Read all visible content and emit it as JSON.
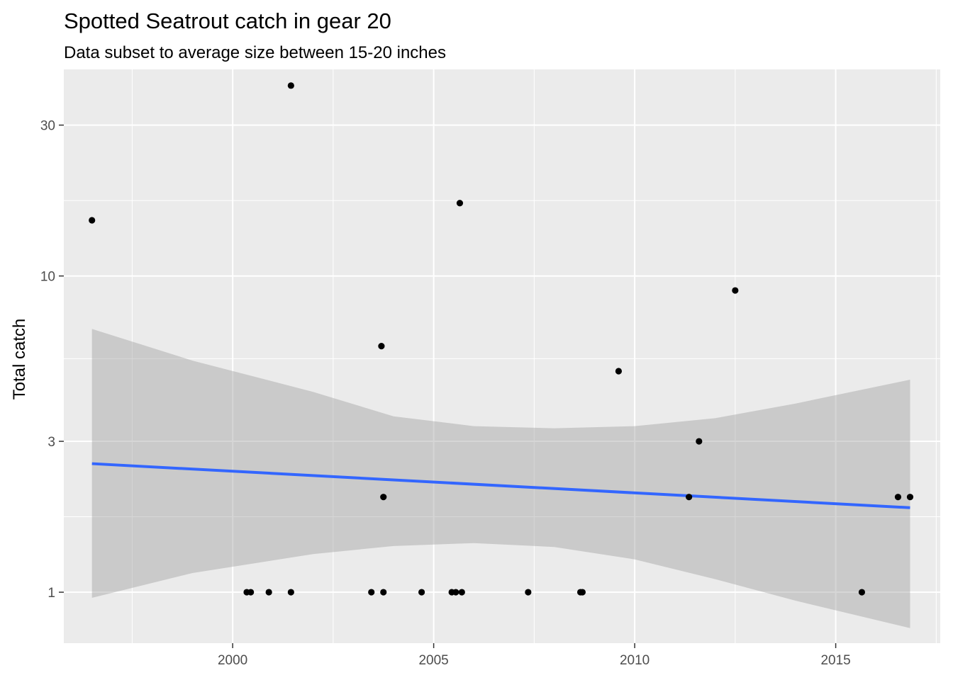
{
  "chart_data": {
    "type": "scatter",
    "title": "Spotted Seatrout catch in gear 20",
    "subtitle": "Data subset to average size between 15-20 inches",
    "xlabel": "",
    "ylabel": "Total catch",
    "y_scale": "log10",
    "xlim": [
      1995.8,
      2017.6
    ],
    "ylim": [
      0.69,
      45
    ],
    "x_ticks": [
      2000,
      2005,
      2010,
      2015
    ],
    "y_ticks": [
      1,
      3,
      10,
      30
    ],
    "grid": true,
    "point_color": "#000000",
    "trend_color": "#3366FF",
    "ribbon_color": "#999999",
    "panel_background": "#EBEBEB",
    "points": [
      {
        "x": 1996.5,
        "y": 15
      },
      {
        "x": 2000.35,
        "y": 1
      },
      {
        "x": 2000.45,
        "y": 1
      },
      {
        "x": 2000.9,
        "y": 1
      },
      {
        "x": 2001.45,
        "y": 1
      },
      {
        "x": 2001.45,
        "y": 40
      },
      {
        "x": 2003.45,
        "y": 1
      },
      {
        "x": 2003.75,
        "y": 1
      },
      {
        "x": 2003.7,
        "y": 6
      },
      {
        "x": 2003.75,
        "y": 2
      },
      {
        "x": 2004.7,
        "y": 1
      },
      {
        "x": 2005.45,
        "y": 1
      },
      {
        "x": 2005.55,
        "y": 1
      },
      {
        "x": 2005.7,
        "y": 1
      },
      {
        "x": 2005.65,
        "y": 17
      },
      {
        "x": 2007.35,
        "y": 1
      },
      {
        "x": 2008.65,
        "y": 1
      },
      {
        "x": 2008.7,
        "y": 1
      },
      {
        "x": 2009.6,
        "y": 5
      },
      {
        "x": 2011.35,
        "y": 2
      },
      {
        "x": 2011.6,
        "y": 3
      },
      {
        "x": 2012.5,
        "y": 9
      },
      {
        "x": 2015.65,
        "y": 1
      },
      {
        "x": 2016.55,
        "y": 2
      },
      {
        "x": 2016.85,
        "y": 2
      }
    ],
    "trend": {
      "x": [
        1996.5,
        2016.85
      ],
      "y": [
        2.55,
        1.85
      ]
    },
    "confidence_band": {
      "x": [
        1996.5,
        1999,
        2002,
        2004,
        2006,
        2008,
        2010,
        2012,
        2014,
        2016.85
      ],
      "upper": [
        6.8,
        5.4,
        4.3,
        3.6,
        3.35,
        3.3,
        3.35,
        3.55,
        3.95,
        4.7
      ],
      "lower": [
        0.96,
        1.15,
        1.32,
        1.4,
        1.43,
        1.39,
        1.27,
        1.1,
        0.94,
        0.77
      ]
    }
  }
}
